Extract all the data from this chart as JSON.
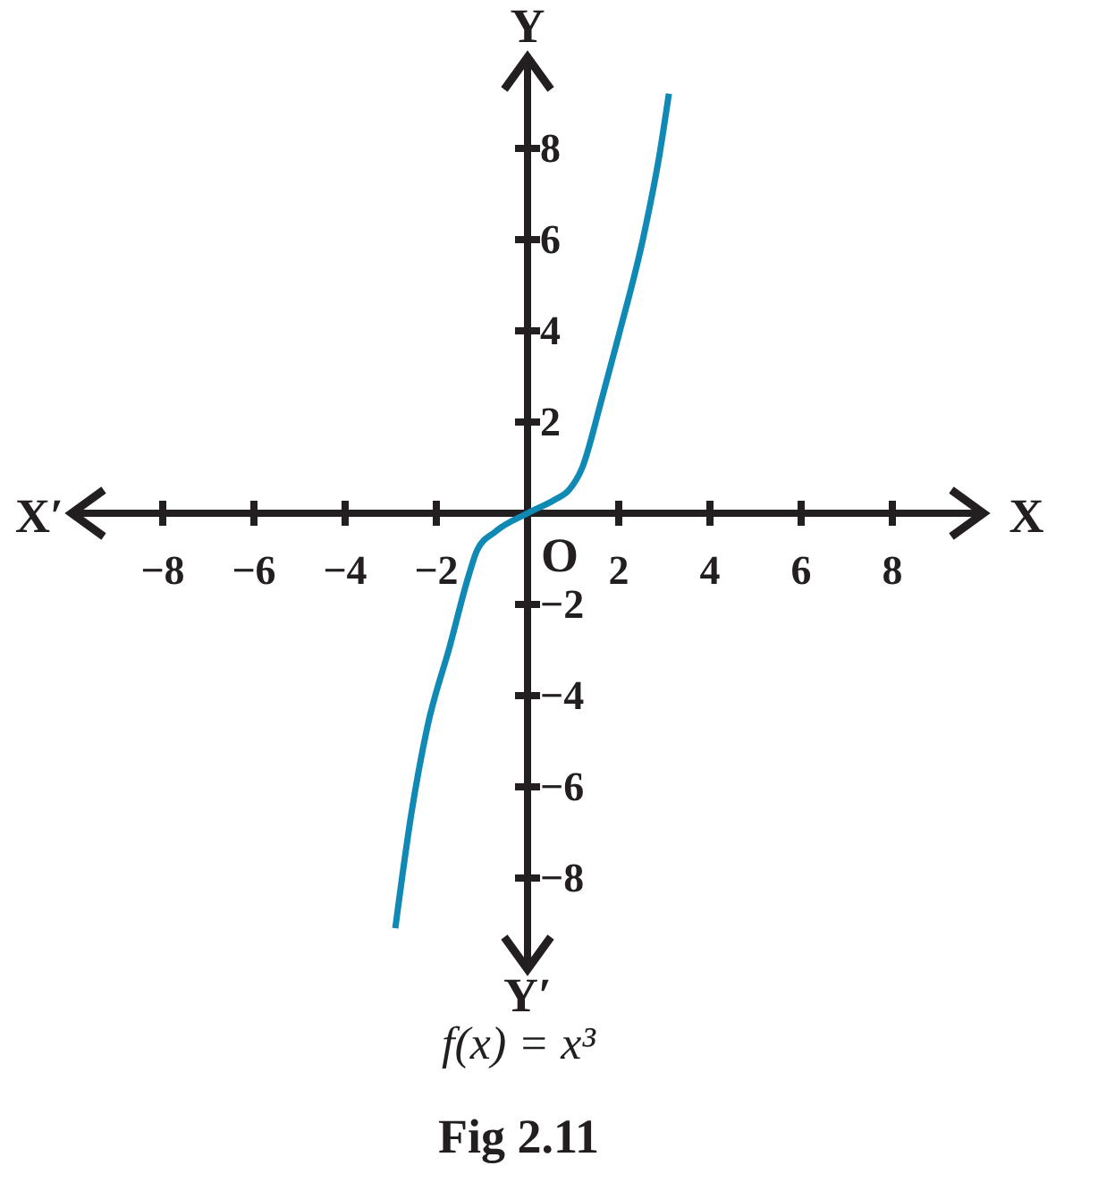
{
  "chart_data": {
    "type": "line",
    "title": "f(x) = x³",
    "xlabel": "X",
    "ylabel": "Y",
    "annotations": [
      "X′",
      "Y′",
      "O",
      "Fig 2.11"
    ],
    "x": [
      -2.9,
      -2.55,
      -2.2,
      -1.7,
      -1.3,
      -1.1,
      -0.7,
      0,
      0.6,
      0.9,
      1.2,
      1.6,
      2.0,
      2.55,
      2.9,
      3.1
    ],
    "series": [
      {
        "color": "#1089b5",
        "values": [
          -9.1,
          -6.6,
          -4.7,
          -2.9,
          -1.4,
          -0.8,
          -0.4,
          0,
          0.3,
          0.5,
          1.0,
          2.4,
          3.9,
          6.1,
          7.9,
          9.2
        ]
      }
    ],
    "xlim": [
      -10,
      10
    ],
    "ylim": [
      -10,
      10
    ],
    "xticks": [
      -8,
      -6,
      -4,
      -2,
      2,
      4,
      6,
      8
    ],
    "yticks": [
      -8,
      -6,
      -4,
      -2,
      2,
      4,
      6,
      8
    ]
  }
}
